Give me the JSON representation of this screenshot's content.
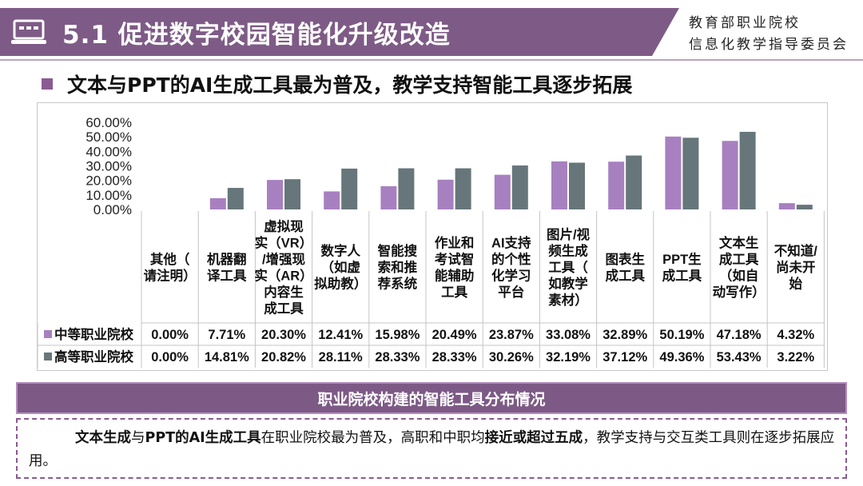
{
  "header": {
    "title": "5.1 促进数字校园智能化升级改造",
    "org_line1": "教育部职业院校",
    "org_line2": "信息化教学指导委员会"
  },
  "subtitle": "文本与PPT的AI生成工具最为普及，教学支持智能工具逐步拓展",
  "chart_data": {
    "type": "bar",
    "title": "",
    "ylim": [
      0,
      60
    ],
    "yticks": [
      "60.00%",
      "50.00%",
      "40.00%",
      "30.00%",
      "20.00%",
      "10.00%",
      "0.00%"
    ],
    "categories": [
      [
        "其他（",
        "请注明）"
      ],
      [
        "机器翻",
        "译工具"
      ],
      [
        "虚拟现",
        "实（VR）",
        "/增强现",
        "实（AR）",
        "内容生",
        "成工具"
      ],
      [
        "数字人",
        "（如虚",
        "拟助教）"
      ],
      [
        "智能搜",
        "索和推",
        "荐系统"
      ],
      [
        "作业和",
        "考试智",
        "能辅助",
        "工具"
      ],
      [
        "AI支持",
        "的个性",
        "化学习",
        "平台"
      ],
      [
        "图片/视",
        "频生成",
        "工具（",
        "如教学",
        "素材）"
      ],
      [
        "图表生",
        "成工具"
      ],
      [
        "PPT生",
        "成工具"
      ],
      [
        "文本生",
        "成工具",
        "（如自",
        "动写作）"
      ],
      [
        "不知道/",
        "尚未开",
        "始"
      ]
    ],
    "series": [
      {
        "name": "中等职业院校",
        "color": "#a780c0",
        "values": [
          0.0,
          7.71,
          20.3,
          12.41,
          15.98,
          20.49,
          23.87,
          33.08,
          32.89,
          50.19,
          47.18,
          4.32
        ],
        "labels": [
          "0.00%",
          "7.71%",
          "20.30%",
          "12.41%",
          "15.98%",
          "20.49%",
          "23.87%",
          "33.08%",
          "32.89%",
          "50.19%",
          "47.18%",
          "4.32%"
        ]
      },
      {
        "name": "高等职业院校",
        "color": "#66767a",
        "values": [
          0.0,
          14.81,
          20.82,
          28.11,
          28.33,
          28.33,
          30.26,
          32.19,
          37.12,
          49.36,
          53.43,
          3.22
        ],
        "labels": [
          "0.00%",
          "14.81%",
          "20.82%",
          "28.11%",
          "28.33%",
          "28.33%",
          "30.26%",
          "32.19%",
          "37.12%",
          "49.36%",
          "53.43%",
          "3.22%"
        ]
      }
    ]
  },
  "caption": "职业院校构建的智能工具分布情况",
  "summary": {
    "p1": "文本生成",
    "p2": "与",
    "p3": "PPT的AI生成工具",
    "p4": "在职业院校最为普及，高职和中职均",
    "p5": "接近或超过五成",
    "p6": "，教学支持与交互类工具则在逐步拓展应用。"
  },
  "colors": {
    "brand": "#7e5b86",
    "series1": "#a780c0",
    "series2": "#66767a"
  }
}
